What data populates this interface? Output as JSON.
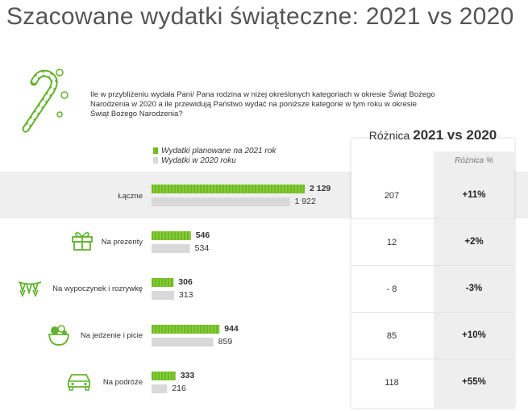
{
  "title": "Szacowane wydatki świąteczne: 2021 vs 2020",
  "question": "Ile w przybliżeniu wydała Pani/ Pana rodzina w niżej określonych kategoriach w okresie Świąt Bożego Narodzenia w 2020 a ile przewidują Państwo wydać na poniższe kategorie w tym roku w okresie Świąt Bożego Narodzenia?",
  "legend": {
    "planned": "Wydatki planowane na 2021 rok",
    "actual": "Wydatki w 2020 roku"
  },
  "diff_header": {
    "prefix": "Różnica",
    "bold": "2021 vs 2020"
  },
  "pct_header": "Różnica %",
  "colors": {
    "green": "#6dbb1f",
    "green_light": "#9fd85a",
    "gray": "#d9d9d9",
    "icon_green": "#63b32e"
  },
  "chart_data": {
    "type": "bar",
    "orientation": "horizontal",
    "title": "Szacowane wydatki świąteczne: 2021 vs 2020",
    "categories": [
      "Łączne",
      "Na prezenty",
      "Na wypoczynek i rozrywkę",
      "Na jedzenie i picie",
      "Na podróże"
    ],
    "series": [
      {
        "name": "Wydatki planowane na 2021 rok",
        "values": [
          2129,
          546,
          306,
          944,
          333
        ],
        "labels": [
          "2 129",
          "546",
          "306",
          "944",
          "333"
        ]
      },
      {
        "name": "Wydatki w 2020 roku",
        "values": [
          1922,
          534,
          313,
          859,
          216
        ],
        "labels": [
          "1 922",
          "534",
          "313",
          "859",
          "216"
        ]
      }
    ],
    "difference": [
      "207",
      "12",
      "- 8",
      "85",
      "118"
    ],
    "difference_pct": [
      "+11%",
      "+2%",
      "-3%",
      "+10%",
      "+55%"
    ],
    "xlim": [
      0,
      2129
    ]
  }
}
